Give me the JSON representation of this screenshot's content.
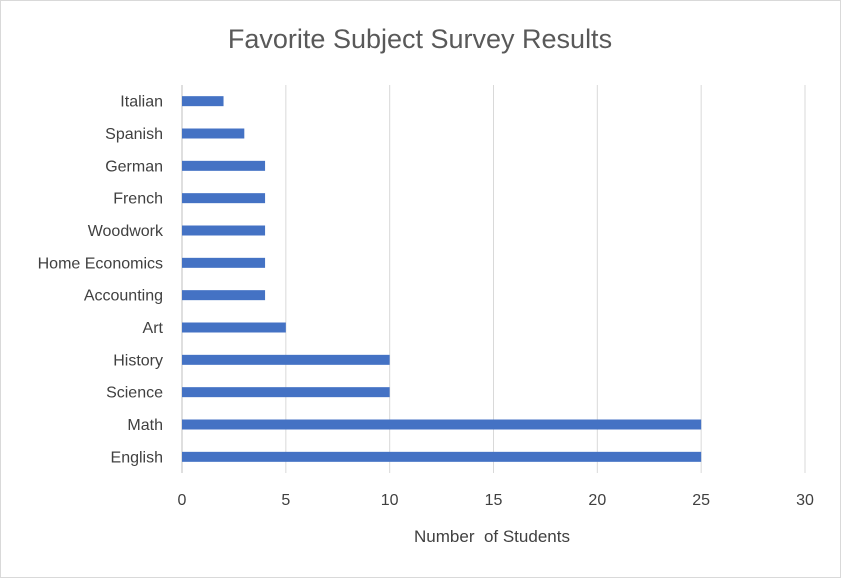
{
  "chart_data": {
    "type": "bar",
    "orientation": "horizontal",
    "title": "Favorite Subject Survey Results",
    "xlabel": "Number  of Students",
    "ylabel": "",
    "xlim": [
      0,
      30
    ],
    "x_ticks": [
      0,
      5,
      10,
      15,
      20,
      25,
      30
    ],
    "grid": true,
    "legend": "none",
    "bar_color": "#4472c4",
    "categories": [
      "Italian",
      "Spanish",
      "German",
      "French",
      "Woodwork",
      "Home Economics",
      "Accounting",
      "Art",
      "History",
      "Science",
      "Math",
      "English"
    ],
    "values": [
      2,
      3,
      4,
      4,
      4,
      4,
      4,
      5,
      10,
      10,
      25,
      25
    ]
  }
}
